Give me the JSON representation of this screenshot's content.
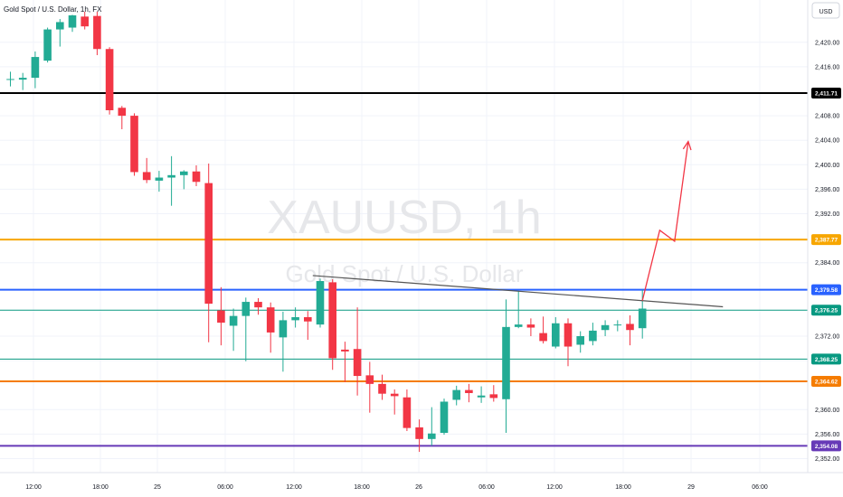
{
  "header": {
    "symbol_description": "Gold Spot / U.S. Dollar, 1h, FX",
    "currency_button": "USD"
  },
  "watermark": {
    "ticker": "XAUUSD, 1h",
    "name": "Gold Spot / U.S. Dollar"
  },
  "colors": {
    "up": "#22ab94",
    "down": "#f23645",
    "black_line": "#000000",
    "orange_line": "#f7a600",
    "orange_line2": "#f57c00",
    "blue_line": "#2962ff",
    "green_line": "#089981",
    "purple_line": "#673ab7",
    "arrow": "#f23645",
    "trendline": "#555555"
  },
  "chart_data": {
    "type": "candlestick",
    "title": "Gold Spot / U.S. Dollar, 1h, FX",
    "symbol": "XAUUSD",
    "interval": "1h",
    "currency": "USD",
    "ylim": [
      2351,
      2425
    ],
    "y_ticks": [
      2352,
      2356,
      2360,
      2368,
      2372,
      2384,
      2392,
      2396,
      2400,
      2404,
      2408,
      2416,
      2420
    ],
    "x_ticks": [
      "12:00",
      "18:00",
      "25",
      "06:00",
      "12:00",
      "18:00",
      "26",
      "06:00",
      "12:00",
      "18:00",
      "29",
      "06:00"
    ],
    "candles": [
      {
        "t": 0,
        "o": 2414.0,
        "h": 2415.2,
        "l": 2412.8,
        "c": 2414.0
      },
      {
        "t": 1,
        "o": 2413.9,
        "h": 2415.0,
        "l": 2412.2,
        "c": 2414.2
      },
      {
        "t": 2,
        "o": 2414.2,
        "h": 2418.5,
        "l": 2412.5,
        "c": 2417.6
      },
      {
        "t": 3,
        "o": 2417.0,
        "h": 2422.4,
        "l": 2416.7,
        "c": 2422.1
      },
      {
        "t": 4,
        "o": 2422.1,
        "h": 2423.8,
        "l": 2419.3,
        "c": 2423.3
      },
      {
        "t": 5,
        "o": 2422.4,
        "h": 2424.5,
        "l": 2421.7,
        "c": 2424.4
      },
      {
        "t": 6,
        "o": 2424.2,
        "h": 2425.0,
        "l": 2422.1,
        "c": 2422.6
      },
      {
        "t": 7,
        "o": 2424.3,
        "h": 2425.0,
        "l": 2417.9,
        "c": 2418.9
      },
      {
        "t": 8,
        "o": 2418.9,
        "h": 2419.2,
        "l": 2408.2,
        "c": 2408.9
      },
      {
        "t": 9,
        "o": 2409.3,
        "h": 2409.6,
        "l": 2405.8,
        "c": 2408.0
      },
      {
        "t": 10,
        "o": 2408.0,
        "h": 2408.4,
        "l": 2398.2,
        "c": 2398.8
      },
      {
        "t": 11,
        "o": 2398.8,
        "h": 2401.1,
        "l": 2397.0,
        "c": 2397.5
      },
      {
        "t": 12,
        "o": 2397.4,
        "h": 2399.0,
        "l": 2395.6,
        "c": 2397.9
      },
      {
        "t": 13,
        "o": 2397.9,
        "h": 2401.4,
        "l": 2393.3,
        "c": 2398.3
      },
      {
        "t": 14,
        "o": 2398.3,
        "h": 2399.1,
        "l": 2396.0,
        "c": 2398.9
      },
      {
        "t": 15,
        "o": 2398.9,
        "h": 2399.9,
        "l": 2396.5,
        "c": 2397.2
      },
      {
        "t": 16,
        "o": 2397.0,
        "h": 2400.2,
        "l": 2371.0,
        "c": 2377.3
      },
      {
        "t": 17,
        "o": 2376.2,
        "h": 2380.0,
        "l": 2370.5,
        "c": 2374.2
      },
      {
        "t": 18,
        "o": 2373.7,
        "h": 2376.5,
        "l": 2369.6,
        "c": 2375.3
      },
      {
        "t": 19,
        "o": 2375.3,
        "h": 2378.3,
        "l": 2367.9,
        "c": 2377.6
      },
      {
        "t": 20,
        "o": 2377.6,
        "h": 2378.2,
        "l": 2375.5,
        "c": 2376.7
      },
      {
        "t": 21,
        "o": 2376.7,
        "h": 2377.5,
        "l": 2369.3,
        "c": 2372.6
      },
      {
        "t": 22,
        "o": 2371.8,
        "h": 2376.0,
        "l": 2366.2,
        "c": 2374.6
      },
      {
        "t": 23,
        "o": 2374.6,
        "h": 2376.7,
        "l": 2373.4,
        "c": 2375.1
      },
      {
        "t": 24,
        "o": 2375.1,
        "h": 2376.1,
        "l": 2371.4,
        "c": 2374.4
      },
      {
        "t": 25,
        "o": 2373.9,
        "h": 2381.4,
        "l": 2373.4,
        "c": 2381.0
      },
      {
        "t": 26,
        "o": 2380.8,
        "h": 2381.3,
        "l": 2366.5,
        "c": 2368.4
      },
      {
        "t": 27,
        "o": 2369.8,
        "h": 2371.1,
        "l": 2364.5,
        "c": 2369.5
      },
      {
        "t": 28,
        "o": 2369.9,
        "h": 2376.7,
        "l": 2362.3,
        "c": 2365.5
      },
      {
        "t": 29,
        "o": 2365.6,
        "h": 2367.8,
        "l": 2359.5,
        "c": 2364.2
      },
      {
        "t": 30,
        "o": 2364.2,
        "h": 2365.7,
        "l": 2361.6,
        "c": 2362.6
      },
      {
        "t": 31,
        "o": 2362.6,
        "h": 2363.3,
        "l": 2359.2,
        "c": 2362.2
      },
      {
        "t": 32,
        "o": 2362.0,
        "h": 2363.3,
        "l": 2356.5,
        "c": 2357.0
      },
      {
        "t": 33,
        "o": 2357.1,
        "h": 2358.4,
        "l": 2353.1,
        "c": 2355.2
      },
      {
        "t": 34,
        "o": 2355.2,
        "h": 2360.4,
        "l": 2354.1,
        "c": 2356.1
      },
      {
        "t": 35,
        "o": 2356.2,
        "h": 2361.8,
        "l": 2355.9,
        "c": 2361.3
      },
      {
        "t": 36,
        "o": 2361.6,
        "h": 2363.9,
        "l": 2360.7,
        "c": 2363.2
      },
      {
        "t": 37,
        "o": 2363.2,
        "h": 2364.2,
        "l": 2361.2,
        "c": 2362.7
      },
      {
        "t": 38,
        "o": 2362.0,
        "h": 2363.8,
        "l": 2361.1,
        "c": 2362.3
      },
      {
        "t": 39,
        "o": 2362.5,
        "h": 2364.0,
        "l": 2361.3,
        "c": 2361.9
      },
      {
        "t": 40,
        "o": 2361.7,
        "h": 2378.0,
        "l": 2356.2,
        "c": 2373.5
      },
      {
        "t": 41,
        "o": 2373.5,
        "h": 2379.4,
        "l": 2373.3,
        "c": 2373.9
      },
      {
        "t": 42,
        "o": 2373.9,
        "h": 2374.9,
        "l": 2372.0,
        "c": 2373.4
      },
      {
        "t": 43,
        "o": 2372.5,
        "h": 2375.2,
        "l": 2370.8,
        "c": 2371.2
      },
      {
        "t": 44,
        "o": 2370.3,
        "h": 2375.1,
        "l": 2370.0,
        "c": 2374.1
      },
      {
        "t": 45,
        "o": 2374.1,
        "h": 2374.9,
        "l": 2367.1,
        "c": 2370.3
      },
      {
        "t": 46,
        "o": 2370.6,
        "h": 2372.8,
        "l": 2369.3,
        "c": 2372.0
      },
      {
        "t": 47,
        "o": 2371.2,
        "h": 2374.2,
        "l": 2370.5,
        "c": 2372.9
      },
      {
        "t": 48,
        "o": 2373.0,
        "h": 2374.6,
        "l": 2372.0,
        "c": 2373.8
      },
      {
        "t": 49,
        "o": 2373.8,
        "h": 2374.6,
        "l": 2372.8,
        "c": 2373.9
      },
      {
        "t": 50,
        "o": 2374.0,
        "h": 2375.4,
        "l": 2370.5,
        "c": 2373.0
      },
      {
        "t": 51,
        "o": 2373.3,
        "h": 2379.6,
        "l": 2371.6,
        "c": 2376.5
      }
    ],
    "horizontal_levels": [
      {
        "value": 2411.71,
        "label": "2,411.71",
        "color": "#000000",
        "width": 2
      },
      {
        "value": 2387.77,
        "label": "2,387.77",
        "color": "#f7a600",
        "width": 2
      },
      {
        "value": 2379.58,
        "label": "2,379.58",
        "color": "#2962ff",
        "width": 2
      },
      {
        "value": 2376.25,
        "label": "2,376.25",
        "color": "#089981",
        "width": 1
      },
      {
        "value": 2368.25,
        "label": "2,368.25",
        "color": "#089981",
        "width": 1
      },
      {
        "value": 2364.62,
        "label": "2,364.62",
        "color": "#f57c00",
        "width": 2
      },
      {
        "value": 2354.08,
        "label": "2,354.08",
        "color": "#673ab7",
        "width": 2
      }
    ],
    "trendline": {
      "start": {
        "t": 24.4,
        "v": 2381.9
      },
      "end": {
        "t": 57.5,
        "v": 2376.8
      }
    },
    "projection_arrow": [
      {
        "t": 51.0,
        "v": 2377.8
      },
      {
        "t": 52.4,
        "v": 2389.3
      },
      {
        "t": 53.6,
        "v": 2387.5
      },
      {
        "t": 54.7,
        "v": 2403.8
      }
    ]
  }
}
